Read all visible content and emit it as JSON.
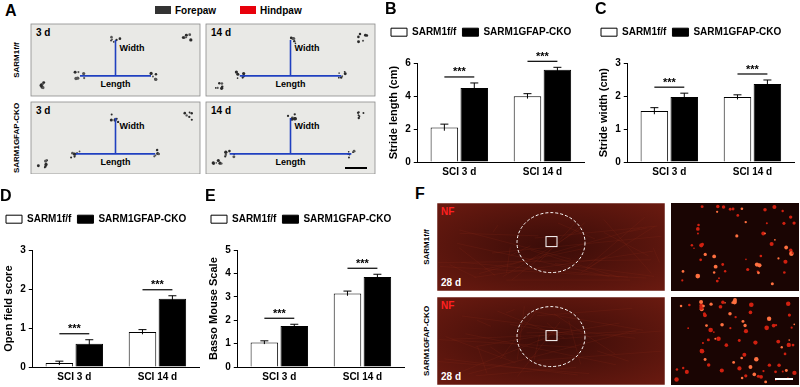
{
  "chart_data": [
    {
      "type": "bar",
      "title": "B",
      "y_label": "Stride length (cm)",
      "categories": [
        "SCI 3 d",
        "SCI 14 d"
      ],
      "series": [
        {
          "name": "SARM1f/f",
          "color": "#ffffff",
          "values": [
            2.1,
            4.0
          ],
          "errors": [
            0.2,
            0.15
          ]
        },
        {
          "name": "SARM1GFAP-CKO",
          "color": "#000000",
          "values": [
            4.5,
            5.6
          ],
          "errors": [
            0.3,
            0.15
          ]
        }
      ],
      "ylim": [
        0,
        6
      ],
      "yticks": [
        0,
        2,
        4,
        6
      ],
      "grid": false,
      "legend": "top left",
      "annotations": [
        "***",
        "***"
      ]
    },
    {
      "type": "bar",
      "title": "C",
      "y_label": "Stride width (cm)",
      "categories": [
        "SCI 3 d",
        "SCI 14 d"
      ],
      "series": [
        {
          "name": "SARM1f/f",
          "color": "#ffffff",
          "values": [
            1.55,
            1.97
          ],
          "errors": [
            0.1,
            0.07
          ]
        },
        {
          "name": "SARM1GFAP-CKO",
          "color": "#000000",
          "values": [
            1.97,
            2.37
          ],
          "errors": [
            0.12,
            0.12
          ]
        }
      ],
      "ylim": [
        0,
        3
      ],
      "yticks": [
        0,
        1,
        2,
        3
      ],
      "grid": false,
      "legend": "top left",
      "annotations": [
        "***",
        "***"
      ]
    },
    {
      "type": "bar",
      "title": "D",
      "y_label": "Open field score",
      "categories": [
        "SCI 3 d",
        "SCI 14 d"
      ],
      "series": [
        {
          "name": "SARM1f/f",
          "color": "#ffffff",
          "values": [
            0.1,
            0.9
          ],
          "errors": [
            0.05,
            0.06
          ]
        },
        {
          "name": "SARM1GFAP-CKO",
          "color": "#000000",
          "values": [
            0.6,
            1.75
          ],
          "errors": [
            0.1,
            0.08
          ]
        }
      ],
      "ylim": [
        0,
        3
      ],
      "yticks": [
        0,
        1,
        2,
        3
      ],
      "grid": false,
      "legend": "top left",
      "annotations": [
        "***",
        "***"
      ]
    },
    {
      "type": "bar",
      "title": "E",
      "y_label": "Basso Mouse Scale",
      "categories": [
        "SCI 3 d",
        "SCI 14 d"
      ],
      "series": [
        {
          "name": "SARM1f/f",
          "color": "#ffffff",
          "values": [
            1.05,
            3.15
          ],
          "errors": [
            0.07,
            0.1
          ]
        },
        {
          "name": "SARM1GFAP-CKO",
          "color": "#000000",
          "values": [
            1.75,
            3.85
          ],
          "errors": [
            0.08,
            0.12
          ]
        }
      ],
      "ylim": [
        0,
        5
      ],
      "yticks": [
        0,
        1,
        2,
        3,
        4,
        5
      ],
      "grid": false,
      "legend": "top left",
      "annotations": [
        "***",
        "***"
      ]
    }
  ],
  "image_panels": [
    {
      "panel": "A",
      "legend": [
        {
          "name": "Forepaw",
          "color": "#333333"
        },
        {
          "name": "Hindpaw",
          "color": "#e8000b"
        }
      ],
      "rows": [
        "SARM1f/f",
        "SARM1GFAP-CKO"
      ],
      "columns": [
        "3 d",
        "14 d"
      ],
      "labels": [
        "Width",
        "Length"
      ]
    },
    {
      "panel": "F",
      "stain": "NF",
      "rows": [
        "SARM1f/f",
        "SARM1GFAP-CKO"
      ],
      "time": "28 d"
    }
  ]
}
